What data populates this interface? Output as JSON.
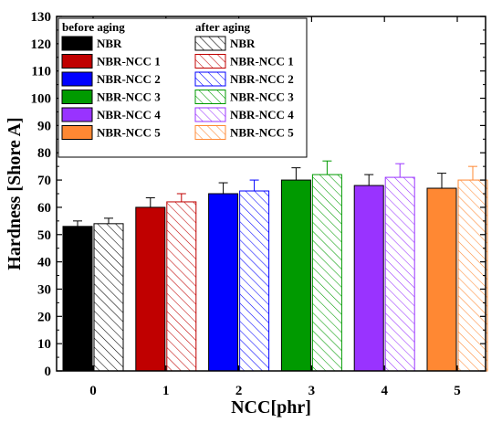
{
  "chart_data": {
    "type": "bar",
    "xlabel": "NCC[phr]",
    "ylabel": "Hardness [Shore A]",
    "categories": [
      "0",
      "1",
      "2",
      "3",
      "4",
      "5"
    ],
    "ylim": [
      0,
      130
    ],
    "yticks": [
      0,
      10,
      20,
      30,
      40,
      50,
      60,
      70,
      80,
      90,
      100,
      110,
      120,
      130
    ],
    "grid": false,
    "legend_position": "top-left",
    "legend_headers": [
      "before aging",
      "after aging"
    ],
    "legend_labels": [
      "NBR",
      "NBR-NCC 1",
      "NBR-NCC 2",
      "NBR-NCC 3",
      "NBR-NCC 4",
      "NBR-NCC 5"
    ],
    "colors": [
      "#000000",
      "#c00000",
      "#0000ff",
      "#009a00",
      "#9933ff",
      "#ff8833"
    ],
    "series": [
      {
        "name": "before aging",
        "style": "solid",
        "values": [
          53,
          60,
          65,
          70,
          68,
          67
        ],
        "errors": [
          2,
          3.5,
          4,
          4.5,
          4,
          5.5
        ]
      },
      {
        "name": "after aging",
        "style": "hatched",
        "values": [
          54,
          62,
          66,
          72,
          71,
          70
        ],
        "errors": [
          2,
          3,
          4,
          5,
          5,
          5
        ]
      }
    ]
  }
}
